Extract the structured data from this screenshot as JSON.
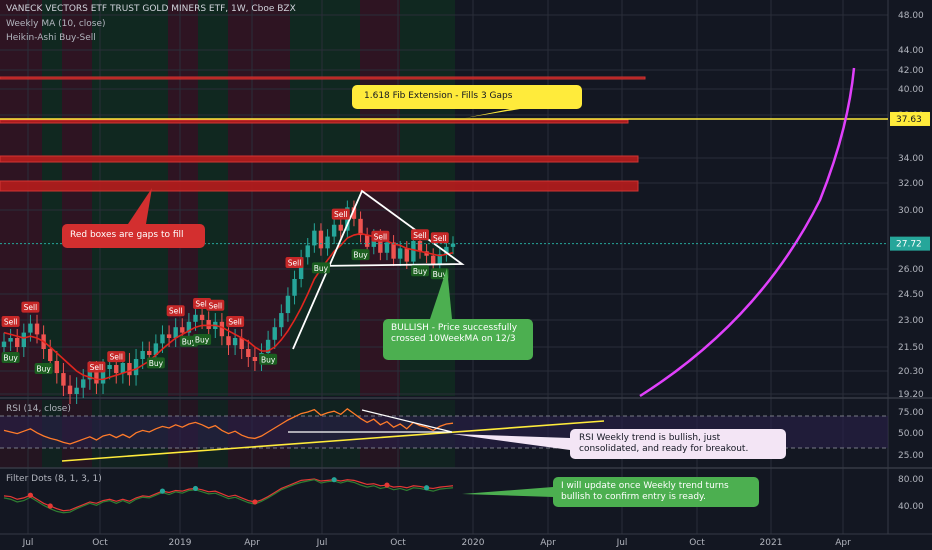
{
  "header": {
    "title": "VANECK VECTORS ETF TRUST GOLD MINERS ETF, 1W, Cboe BZX",
    "indicator_1": "Weekly MA (10, close)",
    "indicator_2": "Heikin-Ashi Buy-Sell"
  },
  "panes": {
    "rsi_label": "RSI (14, close)",
    "filter_label": "Filter Dots (8, 1, 3, 1)"
  },
  "annotations": {
    "fib": "1.618 Fib Extension - Fills 3 Gaps",
    "gaps": "Red boxes are gaps to fill",
    "bullish": "BULLISH - Price successfully crossed 10WeekMA on 12/3",
    "rsi": "RSI Weekly trend is bullish, just consolidated, and ready for breakout.",
    "update": "I will update once Weekly trend turns bullish to confirm entry is ready."
  },
  "colors": {
    "up": "#26a69a",
    "down": "#ef5350",
    "ma": "#e0261f",
    "fib_line": "#ffeb3b",
    "curve": "#e040fb",
    "gap_box": "#b71c1c"
  },
  "chart_data": {
    "type": "candlestick",
    "x_ticks": [
      "Jul",
      "Oct",
      "2019",
      "Apr",
      "Jul",
      "Oct",
      "2020",
      "Apr",
      "Jul",
      "Oct",
      "2021",
      "Apr"
    ],
    "price_axis": {
      "ticks": [
        "48.00",
        "44.00",
        "42.00",
        "40.00",
        "38.00",
        "34.00",
        "32.00",
        "30.00",
        "26.00",
        "24.50",
        "23.00",
        "21.50",
        "20.30",
        "19.20"
      ],
      "last_price": "27.72",
      "fib_price": "37.63"
    },
    "close": [
      21.8,
      22.0,
      21.5,
      22.3,
      22.8,
      22.2,
      21.4,
      20.8,
      20.2,
      19.6,
      19.2,
      19.5,
      19.9,
      20.3,
      19.7,
      20.4,
      20.6,
      20.2,
      20.7,
      20.1,
      20.9,
      21.3,
      21.1,
      21.7,
      22.2,
      22.0,
      22.6,
      22.3,
      22.9,
      23.3,
      23.0,
      22.5,
      22.9,
      22.1,
      21.6,
      22.0,
      21.4,
      21.0,
      20.8,
      21.2,
      21.9,
      22.6,
      23.4,
      24.4,
      25.4,
      26.8,
      27.6,
      28.6,
      27.4,
      28.2,
      29.0,
      28.6,
      30.2,
      29.4,
      28.3,
      27.5,
      28.2,
      27.1,
      27.8,
      26.7,
      27.4,
      26.5,
      27.9,
      27.2,
      26.9,
      26.3,
      27.0,
      27.5,
      27.72
    ],
    "ma10": [
      22.3,
      22.2,
      22.1,
      22.0,
      22.1,
      22.0,
      21.8,
      21.5,
      21.2,
      20.9,
      20.6,
      20.3,
      20.1,
      20.0,
      19.9,
      19.9,
      20.0,
      20.1,
      20.2,
      20.3,
      20.4,
      20.6,
      20.8,
      21.1,
      21.4,
      21.7,
      22.0,
      22.2,
      22.4,
      22.6,
      22.7,
      22.7,
      22.7,
      22.6,
      22.4,
      22.2,
      22.0,
      21.8,
      21.5,
      21.3,
      21.3,
      21.5,
      21.9,
      22.4,
      23.0,
      23.7,
      24.5,
      25.4,
      26.0,
      26.6,
      27.2,
      27.6,
      28.1,
      28.3,
      28.4,
      28.3,
      28.2,
      28.0,
      27.9,
      27.7,
      27.6,
      27.4,
      27.3,
      27.2,
      27.1,
      27.0,
      26.9,
      27.0,
      27.1
    ],
    "signals": [
      {
        "label": "Sell",
        "i": 1
      },
      {
        "label": "Buy",
        "i": 1
      },
      {
        "label": "Sell",
        "i": 5
      },
      {
        "label": "Buy",
        "i": 8
      },
      {
        "label": "Sell",
        "i": 19
      },
      {
        "label": "Sell",
        "i": 23
      },
      {
        "label": "Buy",
        "i": 30
      },
      {
        "label": "Sell",
        "i": 34
      },
      {
        "label": "Buy",
        "i": 37
      },
      {
        "label": "Sell",
        "i": 40
      },
      {
        "label": "Buy",
        "i": 40
      },
      {
        "label": "Sell",
        "i": 43
      },
      {
        "label": "Sell",
        "i": 46
      },
      {
        "label": "Buy",
        "i": 53
      },
      {
        "label": "Sell",
        "i": 58
      },
      {
        "label": "Buy",
        "i": 63
      },
      {
        "label": "Sell",
        "i": 67
      },
      {
        "label": "Buy",
        "i": 71
      },
      {
        "label": "Sell",
        "i": 75
      },
      {
        "label": "Sell",
        "i": 83
      },
      {
        "label": "Buy",
        "i": 83
      },
      {
        "label": "Buy",
        "i": 87
      },
      {
        "label": "Sell",
        "i": 88
      }
    ],
    "rsi": {
      "ticks": [
        "75.00",
        "50.00",
        "25.00"
      ],
      "levels": [
        70,
        30
      ],
      "values": [
        52,
        50,
        48,
        51,
        54,
        49,
        45,
        42,
        40,
        37,
        35,
        38,
        41,
        44,
        40,
        45,
        47,
        43,
        47,
        43,
        49,
        52,
        50,
        54,
        57,
        55,
        59,
        56,
        60,
        62,
        59,
        55,
        58,
        52,
        48,
        51,
        46,
        43,
        42,
        45,
        50,
        55,
        60,
        65,
        69,
        73,
        75,
        78,
        71,
        74,
        76,
        72,
        79,
        73,
        67,
        62,
        66,
        59,
        63,
        56,
        60,
        54,
        62,
        58,
        56,
        52,
        57,
        60,
        61
      ]
    },
    "filter_dots": {
      "ticks": [
        "80.00",
        "40.00"
      ],
      "red_line": [
        55,
        54,
        50,
        52,
        56,
        50,
        44,
        40,
        36,
        33,
        34,
        38,
        42,
        46,
        44,
        48,
        50,
        47,
        50,
        47,
        52,
        55,
        54,
        58,
        62,
        60,
        63,
        62,
        65,
        66,
        64,
        61,
        62,
        58,
        54,
        56,
        52,
        48,
        46,
        49,
        54,
        60,
        66,
        70,
        74,
        78,
        79,
        80,
        77,
        78,
        79,
        77,
        79,
        78,
        75,
        72,
        73,
        70,
        71,
        68,
        69,
        67,
        70,
        69,
        67,
        66,
        68,
        69,
        70
      ],
      "green_line": [
        52,
        50,
        46,
        48,
        53,
        47,
        41,
        36,
        32,
        30,
        31,
        36,
        40,
        44,
        41,
        46,
        48,
        44,
        48,
        44,
        50,
        53,
        52,
        56,
        60,
        57,
        61,
        59,
        63,
        64,
        61,
        58,
        59,
        55,
        51,
        53,
        49,
        45,
        43,
        47,
        52,
        58,
        64,
        68,
        72,
        75,
        77,
        79,
        74,
        76,
        77,
        74,
        77,
        75,
        71,
        68,
        70,
        66,
        68,
        64,
        66,
        63,
        67,
        66,
        64,
        62,
        65,
        66,
        67
      ]
    }
  }
}
